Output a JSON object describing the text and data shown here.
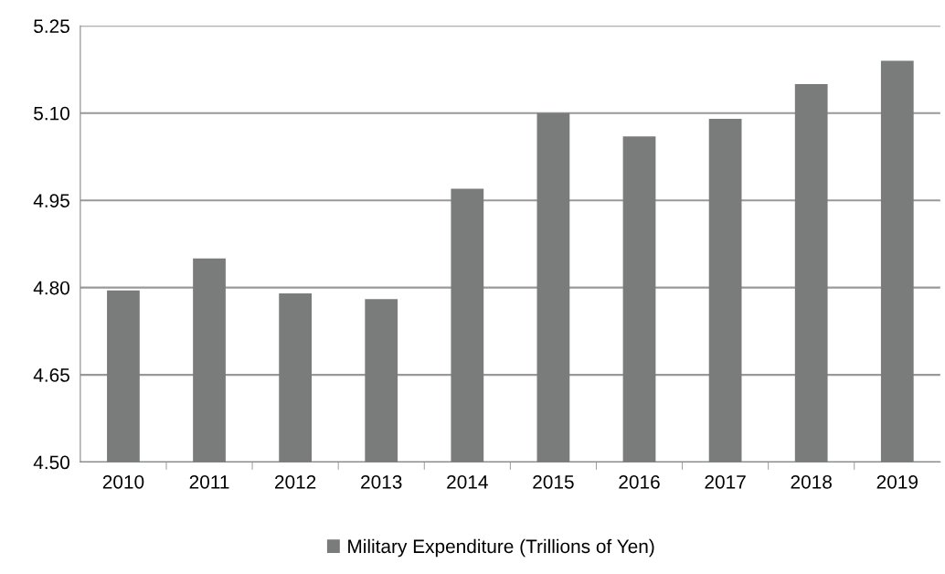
{
  "chart_data": {
    "type": "bar",
    "categories": [
      "2010",
      "2011",
      "2012",
      "2013",
      "2014",
      "2015",
      "2016",
      "2017",
      "2018",
      "2019"
    ],
    "series": [
      {
        "name": "Military Expenditure (Trillions of Yen)",
        "color": "#797c7a",
        "values": [
          4.795,
          4.85,
          4.79,
          4.78,
          4.97,
          5.1,
          5.06,
          5.09,
          5.15,
          5.19
        ]
      }
    ],
    "ylim": [
      4.5,
      5.25
    ],
    "yticks": [
      {
        "value": 4.5,
        "label": "4.50"
      },
      {
        "value": 4.65,
        "label": "4.65"
      },
      {
        "value": 4.8,
        "label": "4.80"
      },
      {
        "value": 4.95,
        "label": "4.95"
      },
      {
        "value": 5.1,
        "label": "5.10"
      },
      {
        "value": 5.25,
        "label": "5.25"
      }
    ],
    "grid": "y",
    "legend": "bottom"
  }
}
